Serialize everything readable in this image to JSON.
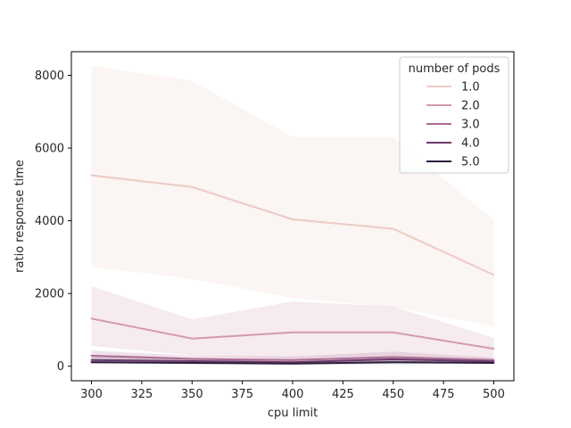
{
  "chart_data": {
    "type": "line",
    "title": "",
    "xlabel": "cpu limit",
    "ylabel": "ratio response time",
    "xlim": [
      290,
      510
    ],
    "ylim": [
      -400,
      8650
    ],
    "x": [
      300,
      350,
      400,
      450,
      500
    ],
    "xticks": [
      300,
      325,
      350,
      375,
      400,
      425,
      450,
      475,
      500
    ],
    "yticks": [
      0,
      2000,
      4000,
      6000,
      8000
    ],
    "grid": false,
    "legend": {
      "title": "number of pods",
      "placement": "top-right"
    },
    "series": [
      {
        "name": "1.0",
        "color": "#eccbc5",
        "values": [
          5250,
          4930,
          4040,
          3780,
          2510
        ],
        "ci_low": [
          2740,
          2400,
          1880,
          1620,
          1100
        ],
        "ci_high": [
          8260,
          7850,
          6300,
          6300,
          4020
        ]
      },
      {
        "name": "2.0",
        "color": "#d399ad",
        "values": [
          1310,
          760,
          930,
          930,
          480
        ],
        "ci_low": [
          560,
          300,
          200,
          200,
          200
        ],
        "ci_high": [
          2200,
          1290,
          1780,
          1640,
          780
        ]
      },
      {
        "name": "3.0",
        "color": "#ad6c96",
        "values": [
          290,
          200,
          170,
          250,
          170
        ],
        "ci_low": [
          170,
          120,
          90,
          120,
          100
        ],
        "ci_high": [
          430,
          290,
          270,
          400,
          240
        ]
      },
      {
        "name": "4.0",
        "color": "#6b3a6a",
        "values": [
          170,
          140,
          110,
          190,
          130
        ],
        "ci_low": [
          110,
          90,
          60,
          110,
          80
        ],
        "ci_high": [
          260,
          200,
          170,
          280,
          190
        ]
      },
      {
        "name": "5.0",
        "color": "#2c1e3d",
        "values": [
          110,
          90,
          70,
          110,
          90
        ],
        "ci_low": [
          70,
          60,
          40,
          60,
          60
        ],
        "ci_high": [
          160,
          130,
          110,
          160,
          130
        ]
      }
    ]
  }
}
